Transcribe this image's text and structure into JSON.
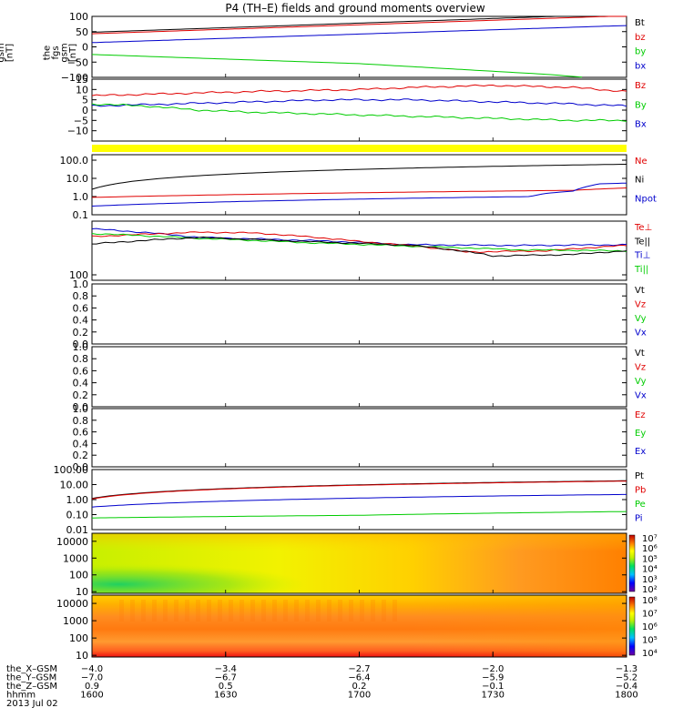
{
  "title": "P4 (TH–E) fields and ground moments overview",
  "colors": {
    "black": "#000000",
    "red": "#e00000",
    "green": "#00cc00",
    "blue": "#0000cc",
    "yellow": "#ffff00"
  },
  "chart_data": [
    {
      "type": "line",
      "ylabel": [
        "the",
        "fgs",
        "gsm",
        "[nT]"
      ],
      "ylim": [
        -100,
        100
      ],
      "scale": "linear",
      "yticks": [
        "100",
        "50",
        "0",
        "−50",
        "−100"
      ],
      "legend": [
        {
          "text": "Bt",
          "color": "black"
        },
        {
          "text": "bz",
          "color": "red"
        },
        {
          "text": "by",
          "color": "green"
        },
        {
          "text": "bx",
          "color": "blue"
        }
      ],
      "series": [
        {
          "name": "Bt",
          "color": "black",
          "x": [
            0,
            1
          ],
          "y": [
            48,
            108
          ]
        },
        {
          "name": "bz",
          "color": "red",
          "x": [
            0,
            1
          ],
          "y": [
            43,
            102
          ]
        },
        {
          "name": "bx",
          "color": "blue",
          "x": [
            0,
            1
          ],
          "y": [
            14,
            70
          ]
        },
        {
          "name": "by",
          "color": "green",
          "x": [
            0,
            0.5,
            0.85,
            0.92
          ],
          "y": [
            -25,
            -55,
            -90,
            -100
          ]
        }
      ]
    },
    {
      "type": "line",
      "ylabel": [
        "the",
        "fgs",
        "gsm",
        "[nT]"
      ],
      "ylim": [
        -15,
        15
      ],
      "scale": "linear",
      "yticks": [
        "15",
        "10",
        "5",
        "0",
        "−5",
        "−10"
      ],
      "legend": [
        {
          "text": "Bz",
          "color": "red"
        },
        {
          "text": "By",
          "color": "green"
        },
        {
          "text": "Bx",
          "color": "blue"
        }
      ],
      "series": [
        {
          "name": "Bz",
          "color": "red",
          "x": [
            0,
            0.15,
            0.3,
            0.5,
            0.6,
            0.75,
            0.9,
            1
          ],
          "y": [
            7,
            8,
            9,
            10,
            11,
            12,
            11,
            9
          ]
        },
        {
          "name": "Bx",
          "color": "blue",
          "x": [
            0,
            0.15,
            0.3,
            0.45,
            0.6,
            0.75,
            0.9,
            1
          ],
          "y": [
            2,
            3,
            4,
            5,
            5,
            4,
            3,
            2
          ]
        },
        {
          "name": "By",
          "color": "green",
          "x": [
            0,
            0.1,
            0.2,
            0.3,
            0.45,
            0.6,
            0.75,
            0.9,
            1
          ],
          "y": [
            3,
            2,
            0,
            -1,
            -2,
            -3,
            -4,
            -5,
            -5
          ]
        }
      ]
    },
    {
      "type": "line",
      "ylabel": [
        "Density",
        "[1/cc]",
        "[cm−3]"
      ],
      "ylim": [
        0.1,
        200
      ],
      "scale": "log",
      "yticks": [
        "100.0",
        "10.0",
        "1.0",
        "0.1"
      ],
      "legend": [
        {
          "text": "Ne",
          "color": "red"
        },
        {
          "text": "Ni",
          "color": "black"
        },
        {
          "text": "Npot",
          "color": "blue"
        }
      ],
      "series": [
        {
          "name": "Ni",
          "color": "black",
          "x": [
            0,
            1
          ],
          "y": [
            2.5,
            60
          ]
        },
        {
          "name": "Ne",
          "color": "red",
          "x": [
            0,
            0.9,
            1
          ],
          "y": [
            0.9,
            2.2,
            3.0
          ]
        },
        {
          "name": "Npot",
          "color": "blue",
          "x": [
            0,
            0.82,
            0.85,
            0.9,
            0.95,
            1
          ],
          "y": [
            0.3,
            1.0,
            1.5,
            2.0,
            5.0,
            5.5
          ]
        }
      ]
    },
    {
      "type": "line",
      "ylabel": [
        "moms",
        "[eV]"
      ],
      "ylim": [
        100,
        5000
      ],
      "scale": "log",
      "yticks": [
        "100"
      ],
      "legend": [
        {
          "text": "Te⊥",
          "color": "red"
        },
        {
          "text": "Te||",
          "color": "black"
        },
        {
          "text": "Ti⊥",
          "color": "blue"
        },
        {
          "text": "Ti||",
          "color": "green"
        }
      ],
      "series": [
        {
          "name": "Ti⊥",
          "color": "blue",
          "x": [
            0,
            0.2,
            0.4,
            0.6,
            0.8,
            1
          ],
          "y": [
            3000,
            1700,
            1400,
            1050,
            1000,
            1050
          ]
        },
        {
          "name": "Te⊥",
          "color": "red",
          "x": [
            0,
            0.2,
            0.3,
            0.5,
            0.7,
            0.85,
            1
          ],
          "y": [
            1800,
            2400,
            2300,
            1300,
            650,
            700,
            1000
          ]
        },
        {
          "name": "Ti||",
          "color": "green",
          "x": [
            0,
            0.2,
            0.4,
            0.6,
            0.8,
            1
          ],
          "y": [
            2200,
            1600,
            1200,
            950,
            750,
            700
          ]
        },
        {
          "name": "Te||",
          "color": "black",
          "x": [
            0,
            0.2,
            0.4,
            0.6,
            0.75,
            0.9,
            1
          ],
          "y": [
            1100,
            1700,
            1300,
            1000,
            500,
            550,
            700
          ]
        }
      ]
    },
    {
      "type": "line",
      "ylabel": [
        "the",
        "peir",
        "velocity",
        "gsm",
        "[km/s] (All Qs)"
      ],
      "ylim": [
        0,
        1
      ],
      "scale": "linear",
      "yticks": [
        "1.0",
        "0.8",
        "0.6",
        "0.4",
        "0.2",
        "0.0"
      ],
      "legend": [
        {
          "text": "Vt",
          "color": "black"
        },
        {
          "text": "Vz",
          "color": "red"
        },
        {
          "text": "Vy",
          "color": "green"
        },
        {
          "text": "Vx",
          "color": "blue"
        }
      ],
      "series": []
    },
    {
      "type": "line",
      "ylabel": [
        "the",
        "peer",
        "velocity",
        "gsm",
        "[km/s] (All Qs)"
      ],
      "ylim": [
        0,
        1
      ],
      "scale": "linear",
      "yticks": [
        "1.0",
        "0.8",
        "0.6",
        "0.4",
        "0.2",
        "0.0"
      ],
      "legend": [
        {
          "text": "Vt",
          "color": "black"
        },
        {
          "text": "Vz",
          "color": "red"
        },
        {
          "text": "Vy",
          "color": "green"
        },
        {
          "text": "Vx",
          "color": "blue"
        }
      ],
      "series": []
    },
    {
      "type": "line",
      "ylabel": [
        "E–VxB",
        "[mV/m]"
      ],
      "ylim": [
        0,
        1
      ],
      "scale": "linear",
      "yticks": [
        "1.0",
        "0.8",
        "0.6",
        "0.4",
        "0.2",
        "0.0"
      ],
      "legend": [
        {
          "text": "Ez",
          "color": "red"
        },
        {
          "text": "Ey",
          "color": "green"
        },
        {
          "text": "Ex",
          "color": "blue"
        }
      ],
      "series": []
    },
    {
      "type": "line",
      "ylabel": [
        "Pressure",
        "[nPa]"
      ],
      "ylim": [
        0.01,
        100
      ],
      "scale": "log",
      "yticks": [
        "100.00",
        "10.00",
        "1.00",
        "0.10",
        "0.01"
      ],
      "legend": [
        {
          "text": "Pt",
          "color": "black"
        },
        {
          "text": "Pb",
          "color": "red"
        },
        {
          "text": "Pe",
          "color": "green"
        },
        {
          "text": "Pi",
          "color": "blue"
        }
      ],
      "series": [
        {
          "name": "Pt",
          "color": "black",
          "x": [
            0,
            1
          ],
          "y": [
            1.2,
            18
          ]
        },
        {
          "name": "Pb",
          "color": "red",
          "x": [
            0,
            1
          ],
          "y": [
            1.1,
            17
          ]
        },
        {
          "name": "Pi",
          "color": "blue",
          "x": [
            0,
            1
          ],
          "y": [
            0.32,
            2.2
          ]
        },
        {
          "name": "Pe",
          "color": "green",
          "x": [
            0,
            0.5,
            1
          ],
          "y": [
            0.06,
            0.09,
            0.16
          ]
        }
      ]
    },
    {
      "type": "heatmap",
      "ylabel": [
        "the",
        "peir",
        "en",
        "eflux",
        "eV",
        "(cm²–s–",
        "sr–eV)"
      ],
      "ylim": [
        8,
        30000
      ],
      "scale": "log",
      "yticks": [
        "10000",
        "1000",
        "100",
        "10"
      ],
      "colorbar": [
        "10⁷",
        "10⁶",
        "10⁵",
        "10⁴",
        "10³",
        "10²"
      ]
    },
    {
      "type": "heatmap",
      "ylabel": [
        "the",
        "peer",
        "en",
        "eflux",
        "eV",
        "(cm²–s–",
        "sr–eV)"
      ],
      "ylim": [
        8,
        30000
      ],
      "scale": "log",
      "yticks": [
        "10000",
        "1000",
        "100",
        "10"
      ],
      "colorbar": [
        "10⁸",
        "10⁷",
        "10⁶",
        "10⁵",
        "10⁴"
      ]
    }
  ],
  "xaxis": {
    "tick_fracs": [
      0,
      0.25,
      0.5,
      0.75,
      1
    ],
    "rows": [
      {
        "label": "the_X–GSM",
        "values": [
          "−4.0",
          "−3.4",
          "−2.7",
          "−2.0",
          "−1.3"
        ]
      },
      {
        "label": "the_Y–GSM",
        "values": [
          "−7.0",
          "−6.7",
          "−6.4",
          "−5.9",
          "−5.2"
        ]
      },
      {
        "label": "the_Z–GSM",
        "values": [
          "0.9",
          "0.5",
          "0.2",
          "−0.1",
          "−0.4"
        ]
      },
      {
        "label": "hhmm",
        "values": [
          "1600",
          "1630",
          "1700",
          "1730",
          "1800"
        ]
      }
    ],
    "date": "2013 Jul 02"
  }
}
